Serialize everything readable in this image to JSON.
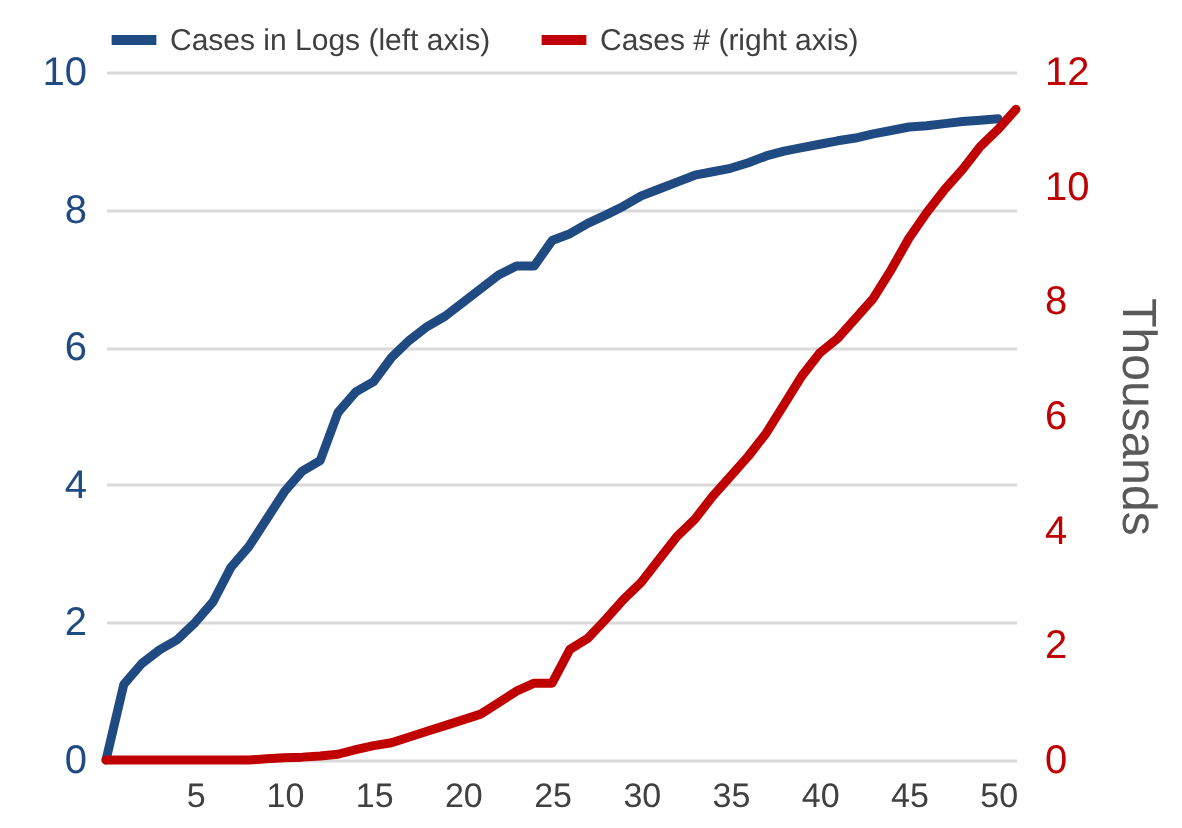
{
  "chart_data": {
    "type": "line",
    "y2label": "Thousands",
    "x": [
      0,
      1,
      2,
      3,
      4,
      5,
      6,
      7,
      8,
      9,
      10,
      11,
      12,
      13,
      14,
      15,
      16,
      17,
      18,
      19,
      20,
      21,
      22,
      23,
      24,
      25,
      26,
      27,
      28,
      29,
      30,
      31,
      32,
      33,
      34,
      35,
      36,
      37,
      38,
      39,
      40,
      41,
      42,
      43,
      44,
      45,
      46,
      47,
      48,
      49,
      50
    ],
    "series": [
      {
        "name": "Cases in Logs (left axis)",
        "color": "#204b82",
        "values": [
          0,
          1.1,
          1.4,
          1.6,
          1.75,
          2.0,
          2.3,
          2.8,
          3.1,
          3.5,
          3.9,
          4.2,
          4.35,
          5.05,
          5.35,
          5.5,
          5.85,
          6.1,
          6.3,
          6.45,
          6.65,
          6.85,
          7.05,
          7.18,
          7.18,
          7.55,
          7.65,
          7.8,
          7.92,
          8.05,
          8.2,
          8.3,
          8.4,
          8.5,
          8.55,
          8.6,
          8.68,
          8.78,
          8.85,
          8.9,
          8.95,
          9.0,
          9.04,
          9.1,
          9.15,
          9.2,
          9.22,
          9.25,
          9.28,
          9.3,
          9.32
        ]
      },
      {
        "name": "Cases # (right axis)",
        "color": "#c00000",
        "axis": "y2",
        "x": [
          0,
          1,
          2,
          3,
          4,
          5,
          6,
          7,
          8,
          9,
          10,
          11,
          12,
          13,
          14,
          15,
          16,
          17,
          18,
          19,
          20,
          21,
          22,
          23,
          24,
          25,
          26,
          27,
          28,
          29,
          30,
          31,
          32,
          33,
          34,
          35,
          36,
          37,
          38,
          39,
          40,
          41,
          42,
          43,
          44,
          45,
          46,
          47,
          48,
          49,
          50,
          51
        ],
        "values": [
          0,
          0,
          0,
          0,
          0,
          0,
          0,
          0,
          0,
          0.02,
          0.04,
          0.05,
          0.07,
          0.1,
          0.18,
          0.25,
          0.3,
          0.4,
          0.5,
          0.6,
          0.7,
          0.8,
          1.0,
          1.2,
          1.34,
          1.34,
          1.93,
          2.12,
          2.45,
          2.8,
          3.1,
          3.5,
          3.9,
          4.2,
          4.6,
          4.95,
          5.3,
          5.7,
          6.2,
          6.7,
          7.1,
          7.35,
          7.7,
          8.05,
          8.55,
          9.1,
          9.55,
          9.95,
          10.3,
          10.7,
          11.0,
          11.35
        ]
      }
    ],
    "xlim": [
      0,
      51
    ],
    "xticks": [
      5,
      10,
      15,
      20,
      25,
      30,
      35,
      40,
      45,
      50
    ],
    "ylim": [
      0,
      10
    ],
    "yticks": [
      0,
      2,
      4,
      6,
      8,
      10
    ],
    "y2lim": [
      0,
      12
    ],
    "y2ticks": [
      0,
      2,
      4,
      6,
      8,
      10,
      12
    ],
    "grid": "y",
    "legend": "top",
    "marker": "none",
    "line_style": "solid"
  }
}
